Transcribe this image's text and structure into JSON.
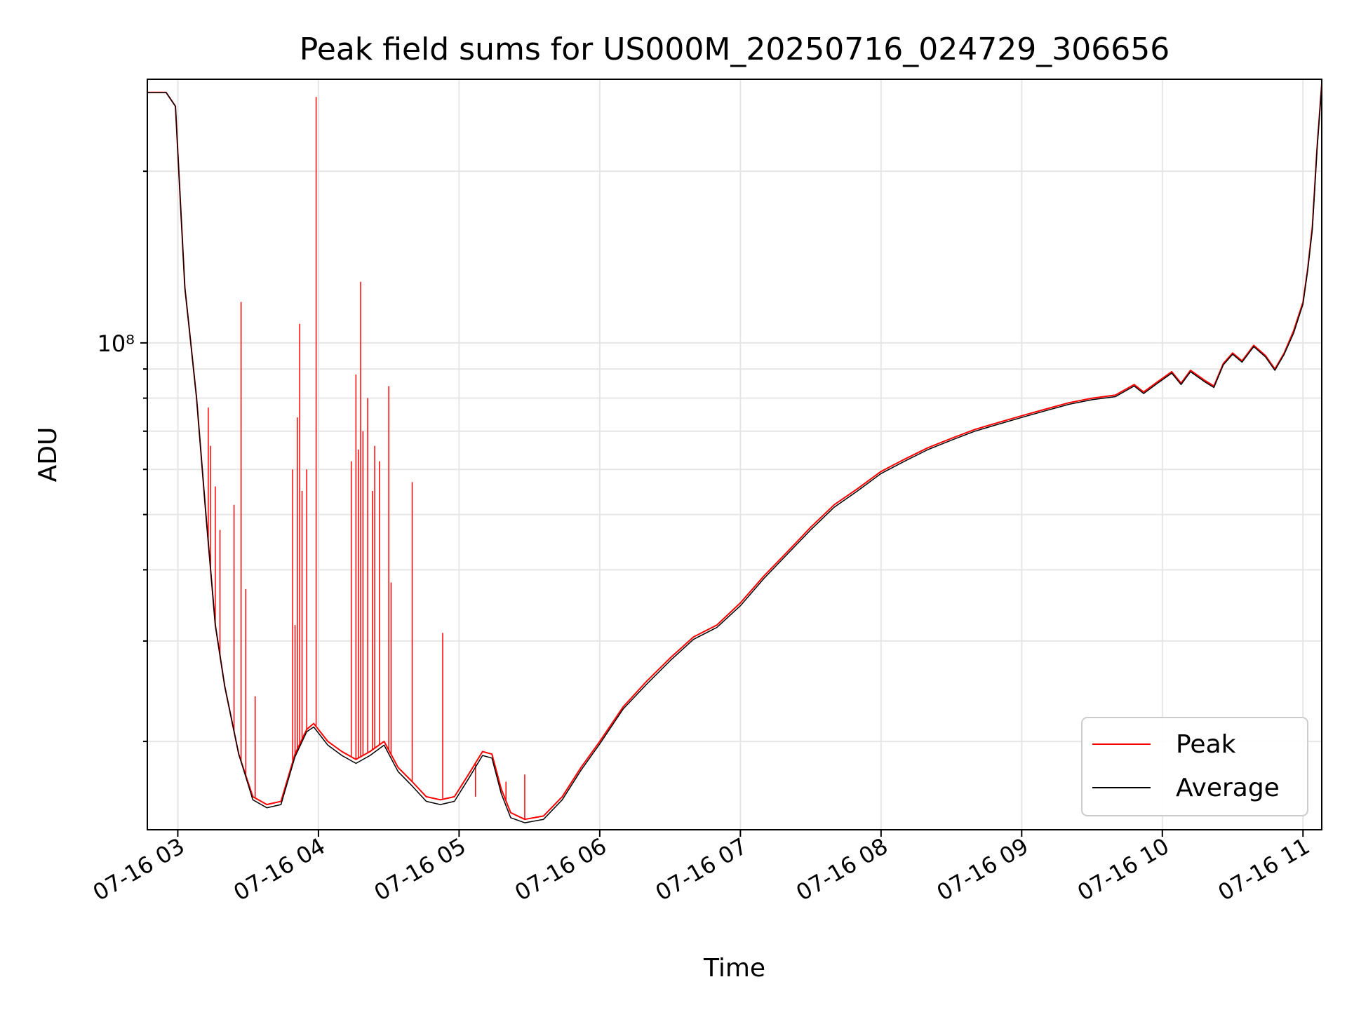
{
  "chart_data": {
    "type": "line",
    "title": "Peak field sums for US000M_20250716_024729_306656",
    "xlabel": "Time",
    "ylabel": "ADU",
    "yscale": "log",
    "grid": true,
    "legend_position": "lower-right",
    "x_ticks": [
      "07-16 03",
      "07-16 04",
      "07-16 05",
      "07-16 06",
      "07-16 07",
      "07-16 08",
      "07-16 09",
      "07-16 10",
      "07-16 11"
    ],
    "y_tick_labels": [
      {
        "value": 100000000,
        "label": "10⁸"
      }
    ],
    "xlim": [
      "2025-07-16 02:47",
      "2025-07-16 11:08"
    ],
    "ylim": [
      14000000,
      290000000
    ],
    "series": [
      {
        "name": "Peak",
        "color": "#ff0000",
        "points": [
          [
            "2025-07-16 02:47",
            275000000
          ],
          [
            "2025-07-16 02:55",
            275000000
          ],
          [
            "2025-07-16 02:59",
            260000000
          ],
          [
            "2025-07-16 03:01",
            180000000
          ],
          [
            "2025-07-16 03:03",
            125000000
          ],
          [
            "2025-07-16 03:05",
            105000000
          ],
          [
            "2025-07-16 03:08",
            80000000
          ],
          [
            "2025-07-16 03:12",
            50000000
          ],
          [
            "2025-07-16 03:16",
            32000000
          ],
          [
            "2025-07-16 03:20",
            25000000
          ],
          [
            "2025-07-16 03:26",
            19000000
          ],
          [
            "2025-07-16 03:32",
            16000000
          ],
          [
            "2025-07-16 03:38",
            15500000
          ],
          [
            "2025-07-16 03:44",
            15700000
          ],
          [
            "2025-07-16 03:50",
            19000000
          ],
          [
            "2025-07-16 03:55",
            21000000
          ],
          [
            "2025-07-16 03:58",
            21500000
          ],
          [
            "2025-07-16 04:04",
            20000000
          ],
          [
            "2025-07-16 04:10",
            19200000
          ],
          [
            "2025-07-16 04:16",
            18600000
          ],
          [
            "2025-07-16 04:22",
            19200000
          ],
          [
            "2025-07-16 04:28",
            20000000
          ],
          [
            "2025-07-16 04:34",
            18000000
          ],
          [
            "2025-07-16 04:40",
            17000000
          ],
          [
            "2025-07-16 04:46",
            16000000
          ],
          [
            "2025-07-16 04:52",
            15800000
          ],
          [
            "2025-07-16 04:58",
            16000000
          ],
          [
            "2025-07-16 05:04",
            17500000
          ],
          [
            "2025-07-16 05:10",
            19200000
          ],
          [
            "2025-07-16 05:14",
            19000000
          ],
          [
            "2025-07-16 05:18",
            16500000
          ],
          [
            "2025-07-16 05:22",
            15000000
          ],
          [
            "2025-07-16 05:28",
            14600000
          ],
          [
            "2025-07-16 05:36",
            14800000
          ],
          [
            "2025-07-16 05:44",
            16000000
          ],
          [
            "2025-07-16 05:52",
            18000000
          ],
          [
            "2025-07-16 06:00",
            20000000
          ],
          [
            "2025-07-16 06:10",
            23000000
          ],
          [
            "2025-07-16 06:20",
            25500000
          ],
          [
            "2025-07-16 06:30",
            28000000
          ],
          [
            "2025-07-16 06:40",
            30500000
          ],
          [
            "2025-07-16 06:50",
            32000000
          ],
          [
            "2025-07-16 07:00",
            35000000
          ],
          [
            "2025-07-16 07:10",
            39000000
          ],
          [
            "2025-07-16 07:20",
            43000000
          ],
          [
            "2025-07-16 07:30",
            47500000
          ],
          [
            "2025-07-16 07:40",
            52000000
          ],
          [
            "2025-07-16 07:50",
            55500000
          ],
          [
            "2025-07-16 08:00",
            59500000
          ],
          [
            "2025-07-16 08:10",
            62500000
          ],
          [
            "2025-07-16 08:20",
            65500000
          ],
          [
            "2025-07-16 08:30",
            68000000
          ],
          [
            "2025-07-16 08:40",
            70500000
          ],
          [
            "2025-07-16 08:50",
            72500000
          ],
          [
            "2025-07-16 09:00",
            74500000
          ],
          [
            "2025-07-16 09:10",
            76500000
          ],
          [
            "2025-07-16 09:20",
            78500000
          ],
          [
            "2025-07-16 09:30",
            80000000
          ],
          [
            "2025-07-16 09:40",
            81000000
          ],
          [
            "2025-07-16 09:48",
            84500000
          ],
          [
            "2025-07-16 09:52",
            82000000
          ],
          [
            "2025-07-16 09:58",
            85500000
          ],
          [
            "2025-07-16 10:04",
            89000000
          ],
          [
            "2025-07-16 10:08",
            85000000
          ],
          [
            "2025-07-16 10:12",
            89500000
          ],
          [
            "2025-07-16 10:18",
            86000000
          ],
          [
            "2025-07-16 10:22",
            84000000
          ],
          [
            "2025-07-16 10:26",
            92000000
          ],
          [
            "2025-07-16 10:30",
            96000000
          ],
          [
            "2025-07-16 10:34",
            93000000
          ],
          [
            "2025-07-16 10:39",
            99000000
          ],
          [
            "2025-07-16 10:44",
            95000000
          ],
          [
            "2025-07-16 10:48",
            90000000
          ],
          [
            "2025-07-16 10:52",
            96000000
          ],
          [
            "2025-07-16 10:56",
            105000000
          ],
          [
            "2025-07-16 11:00",
            118000000
          ],
          [
            "2025-07-16 11:02",
            135000000
          ],
          [
            "2025-07-16 11:04",
            160000000
          ],
          [
            "2025-07-16 11:06",
            220000000
          ],
          [
            "2025-07-16 11:08",
            285000000
          ]
        ],
        "spikes": [
          [
            "2025-07-16 03:13",
            77000000
          ],
          [
            "2025-07-16 03:14",
            66000000
          ],
          [
            "2025-07-16 03:16",
            56000000
          ],
          [
            "2025-07-16 03:18",
            47000000
          ],
          [
            "2025-07-16 03:24",
            52000000
          ],
          [
            "2025-07-16 03:27",
            118000000
          ],
          [
            "2025-07-16 03:29",
            37000000
          ],
          [
            "2025-07-16 03:33",
            24000000
          ],
          [
            "2025-07-16 03:49",
            60000000
          ],
          [
            "2025-07-16 03:50",
            32000000
          ],
          [
            "2025-07-16 03:51",
            74000000
          ],
          [
            "2025-07-16 03:52",
            108000000
          ],
          [
            "2025-07-16 03:53",
            55000000
          ],
          [
            "2025-07-16 03:55",
            60000000
          ],
          [
            "2025-07-16 03:59",
            270000000
          ],
          [
            "2025-07-16 04:14",
            62000000
          ],
          [
            "2025-07-16 04:16",
            88000000
          ],
          [
            "2025-07-16 04:17",
            65000000
          ],
          [
            "2025-07-16 04:18",
            128000000
          ],
          [
            "2025-07-16 04:19",
            70000000
          ],
          [
            "2025-07-16 04:21",
            80000000
          ],
          [
            "2025-07-16 04:23",
            55000000
          ],
          [
            "2025-07-16 04:24",
            66000000
          ],
          [
            "2025-07-16 04:26",
            62000000
          ],
          [
            "2025-07-16 04:30",
            84000000
          ],
          [
            "2025-07-16 04:31",
            38000000
          ],
          [
            "2025-07-16 04:40",
            57000000
          ],
          [
            "2025-07-16 04:53",
            31000000
          ],
          [
            "2025-07-16 05:07",
            16000000
          ],
          [
            "2025-07-16 05:20",
            17000000
          ],
          [
            "2025-07-16 05:28",
            17500000
          ]
        ]
      },
      {
        "name": "Average",
        "color": "#000000",
        "points": [
          [
            "2025-07-16 02:47",
            275000000
          ],
          [
            "2025-07-16 02:55",
            275000000
          ],
          [
            "2025-07-16 02:59",
            260000000
          ],
          [
            "2025-07-16 03:01",
            180000000
          ],
          [
            "2025-07-16 03:03",
            125000000
          ],
          [
            "2025-07-16 03:05",
            105000000
          ],
          [
            "2025-07-16 03:08",
            80000000
          ],
          [
            "2025-07-16 03:12",
            50000000
          ],
          [
            "2025-07-16 03:16",
            32000000
          ],
          [
            "2025-07-16 03:20",
            25000000
          ],
          [
            "2025-07-16 03:26",
            19000000
          ],
          [
            "2025-07-16 03:32",
            15800000
          ],
          [
            "2025-07-16 03:38",
            15300000
          ],
          [
            "2025-07-16 03:44",
            15500000
          ],
          [
            "2025-07-16 03:50",
            18800000
          ],
          [
            "2025-07-16 03:55",
            20800000
          ],
          [
            "2025-07-16 03:58",
            21200000
          ],
          [
            "2025-07-16 04:04",
            19700000
          ],
          [
            "2025-07-16 04:10",
            18900000
          ],
          [
            "2025-07-16 04:16",
            18300000
          ],
          [
            "2025-07-16 04:22",
            18900000
          ],
          [
            "2025-07-16 04:28",
            19700000
          ],
          [
            "2025-07-16 04:34",
            17700000
          ],
          [
            "2025-07-16 04:40",
            16700000
          ],
          [
            "2025-07-16 04:46",
            15700000
          ],
          [
            "2025-07-16 04:52",
            15500000
          ],
          [
            "2025-07-16 04:58",
            15700000
          ],
          [
            "2025-07-16 05:04",
            17200000
          ],
          [
            "2025-07-16 05:10",
            18900000
          ],
          [
            "2025-07-16 05:14",
            18700000
          ],
          [
            "2025-07-16 05:18",
            16200000
          ],
          [
            "2025-07-16 05:22",
            14700000
          ],
          [
            "2025-07-16 05:28",
            14400000
          ],
          [
            "2025-07-16 05:36",
            14600000
          ],
          [
            "2025-07-16 05:44",
            15800000
          ],
          [
            "2025-07-16 05:52",
            17800000
          ],
          [
            "2025-07-16 06:00",
            19800000
          ],
          [
            "2025-07-16 06:10",
            22800000
          ],
          [
            "2025-07-16 06:20",
            25200000
          ],
          [
            "2025-07-16 06:30",
            27700000
          ],
          [
            "2025-07-16 06:40",
            30200000
          ],
          [
            "2025-07-16 06:50",
            31700000
          ],
          [
            "2025-07-16 07:00",
            34600000
          ],
          [
            "2025-07-16 07:10",
            38600000
          ],
          [
            "2025-07-16 07:20",
            42600000
          ],
          [
            "2025-07-16 07:30",
            47000000
          ],
          [
            "2025-07-16 07:40",
            51500000
          ],
          [
            "2025-07-16 07:50",
            55000000
          ],
          [
            "2025-07-16 08:00",
            59000000
          ],
          [
            "2025-07-16 08:10",
            62000000
          ],
          [
            "2025-07-16 08:20",
            65000000
          ],
          [
            "2025-07-16 08:30",
            67500000
          ],
          [
            "2025-07-16 08:40",
            70000000
          ],
          [
            "2025-07-16 08:50",
            72000000
          ],
          [
            "2025-07-16 09:00",
            74000000
          ],
          [
            "2025-07-16 09:10",
            76000000
          ],
          [
            "2025-07-16 09:20",
            78000000
          ],
          [
            "2025-07-16 09:30",
            79500000
          ],
          [
            "2025-07-16 09:40",
            80500000
          ],
          [
            "2025-07-16 09:48",
            84000000
          ],
          [
            "2025-07-16 09:52",
            81500000
          ],
          [
            "2025-07-16 09:58",
            85000000
          ],
          [
            "2025-07-16 10:04",
            88500000
          ],
          [
            "2025-07-16 10:08",
            84500000
          ],
          [
            "2025-07-16 10:12",
            89000000
          ],
          [
            "2025-07-16 10:18",
            85500000
          ],
          [
            "2025-07-16 10:22",
            83500000
          ],
          [
            "2025-07-16 10:26",
            91500000
          ],
          [
            "2025-07-16 10:30",
            95500000
          ],
          [
            "2025-07-16 10:34",
            92500000
          ],
          [
            "2025-07-16 10:39",
            98500000
          ],
          [
            "2025-07-16 10:44",
            94500000
          ],
          [
            "2025-07-16 10:48",
            89500000
          ],
          [
            "2025-07-16 10:52",
            95500000
          ],
          [
            "2025-07-16 10:56",
            104000000
          ],
          [
            "2025-07-16 11:00",
            117000000
          ],
          [
            "2025-07-16 11:02",
            134000000
          ],
          [
            "2025-07-16 11:04",
            158000000
          ],
          [
            "2025-07-16 11:06",
            218000000
          ],
          [
            "2025-07-16 11:08",
            283000000
          ]
        ]
      }
    ]
  }
}
